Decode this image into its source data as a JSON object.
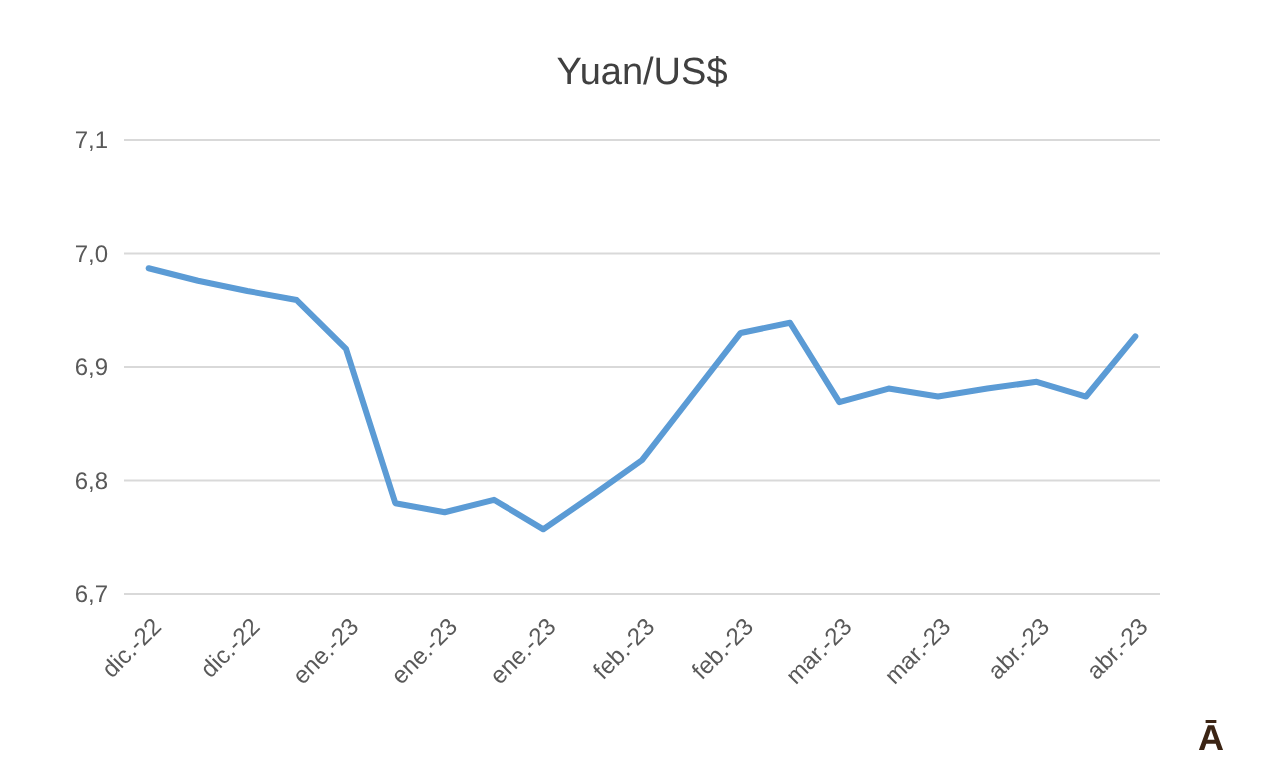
{
  "chart_data": {
    "type": "line",
    "title": "Yuan/US$",
    "categories": [
      "dic.-22",
      null,
      "dic.-22",
      null,
      "ene.-23",
      null,
      "ene.-23",
      null,
      "ene.-23",
      null,
      "feb.-23",
      null,
      "feb.-23",
      null,
      "mar.-23",
      null,
      "mar.-23",
      null,
      "abr.-23",
      null,
      "abr.-23"
    ],
    "series": [
      {
        "color": "#5b9bd5",
        "values": [
          6.987,
          6.976,
          6.967,
          6.959,
          6.916,
          6.78,
          6.772,
          6.783,
          6.757,
          6.787,
          6.818,
          6.874,
          6.93,
          6.939,
          6.869,
          6.881,
          6.874,
          6.881,
          6.887,
          6.874,
          6.927
        ]
      }
    ],
    "ylim": [
      6.7,
      7.1
    ],
    "yticks": [
      {
        "value": 6.7,
        "label": "6,7"
      },
      {
        "value": 6.8,
        "label": "6,8"
      },
      {
        "value": 6.9,
        "label": "6,9"
      },
      {
        "value": 7.0,
        "label": "7,0"
      },
      {
        "value": 7.1,
        "label": "7,1"
      }
    ],
    "grid": "y",
    "marker": "none",
    "line_style": "solid",
    "annotations": [
      "Ā"
    ]
  }
}
